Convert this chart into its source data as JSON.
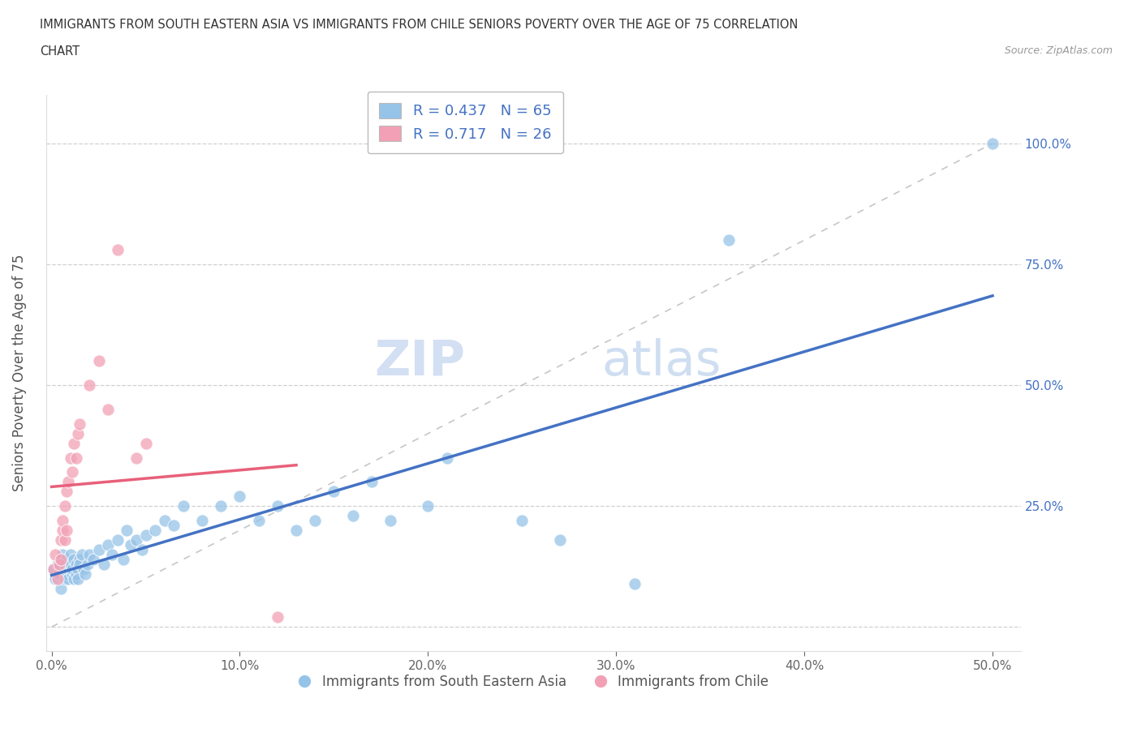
{
  "title_line1": "IMMIGRANTS FROM SOUTH EASTERN ASIA VS IMMIGRANTS FROM CHILE SENIORS POVERTY OVER THE AGE OF 75 CORRELATION",
  "title_line2": "CHART",
  "source_text": "Source: ZipAtlas.com",
  "ylabel": "Seniors Poverty Over the Age of 75",
  "watermark_zip": "ZIP",
  "watermark_atlas": "atlas",
  "legend_r1": "R = 0.437",
  "legend_n1": "N = 65",
  "legend_r2": "R = 0.717",
  "legend_n2": "N = 26",
  "color_blue": "#96C3E8",
  "color_pink": "#F2A0B5",
  "color_trendline_blue": "#4472C4",
  "color_trendline_pink": "#E8607A",
  "color_trendline_dashed": "#C0C0C0",
  "legend_label1": "Immigrants from South Eastern Asia",
  "legend_label2": "Immigrants from Chile",
  "blue_x": [
    0.001,
    0.002,
    0.003,
    0.004,
    0.005,
    0.005,
    0.006,
    0.006,
    0.007,
    0.007,
    0.008,
    0.008,
    0.009,
    0.009,
    0.01,
    0.01,
    0.011,
    0.011,
    0.012,
    0.012,
    0.013,
    0.013,
    0.014,
    0.014,
    0.015,
    0.015,
    0.016,
    0.017,
    0.018,
    0.019,
    0.02,
    0.022,
    0.025,
    0.028,
    0.03,
    0.032,
    0.035,
    0.038,
    0.04,
    0.042,
    0.045,
    0.048,
    0.05,
    0.055,
    0.06,
    0.065,
    0.07,
    0.08,
    0.09,
    0.1,
    0.11,
    0.12,
    0.13,
    0.14,
    0.15,
    0.16,
    0.17,
    0.18,
    0.2,
    0.21,
    0.25,
    0.27,
    0.31,
    0.36,
    0.5
  ],
  "blue_y": [
    0.12,
    0.1,
    0.13,
    0.11,
    0.14,
    0.08,
    0.12,
    0.15,
    0.1,
    0.13,
    0.11,
    0.14,
    0.12,
    0.1,
    0.13,
    0.15,
    0.11,
    0.12,
    0.1,
    0.14,
    0.13,
    0.11,
    0.12,
    0.1,
    0.14,
    0.13,
    0.15,
    0.12,
    0.11,
    0.13,
    0.15,
    0.14,
    0.16,
    0.13,
    0.17,
    0.15,
    0.18,
    0.14,
    0.2,
    0.17,
    0.18,
    0.16,
    0.19,
    0.2,
    0.22,
    0.21,
    0.25,
    0.22,
    0.25,
    0.27,
    0.22,
    0.25,
    0.2,
    0.22,
    0.28,
    0.23,
    0.3,
    0.22,
    0.25,
    0.35,
    0.22,
    0.18,
    0.09,
    0.8,
    1.0
  ],
  "pink_x": [
    0.001,
    0.002,
    0.003,
    0.004,
    0.005,
    0.005,
    0.006,
    0.006,
    0.007,
    0.007,
    0.008,
    0.008,
    0.009,
    0.01,
    0.011,
    0.012,
    0.013,
    0.014,
    0.015,
    0.02,
    0.025,
    0.03,
    0.035,
    0.045,
    0.05,
    0.12
  ],
  "pink_y": [
    0.12,
    0.15,
    0.1,
    0.13,
    0.18,
    0.14,
    0.2,
    0.22,
    0.18,
    0.25,
    0.2,
    0.28,
    0.3,
    0.35,
    0.32,
    0.38,
    0.35,
    0.4,
    0.42,
    0.5,
    0.55,
    0.45,
    0.78,
    0.35,
    0.38,
    0.02
  ]
}
